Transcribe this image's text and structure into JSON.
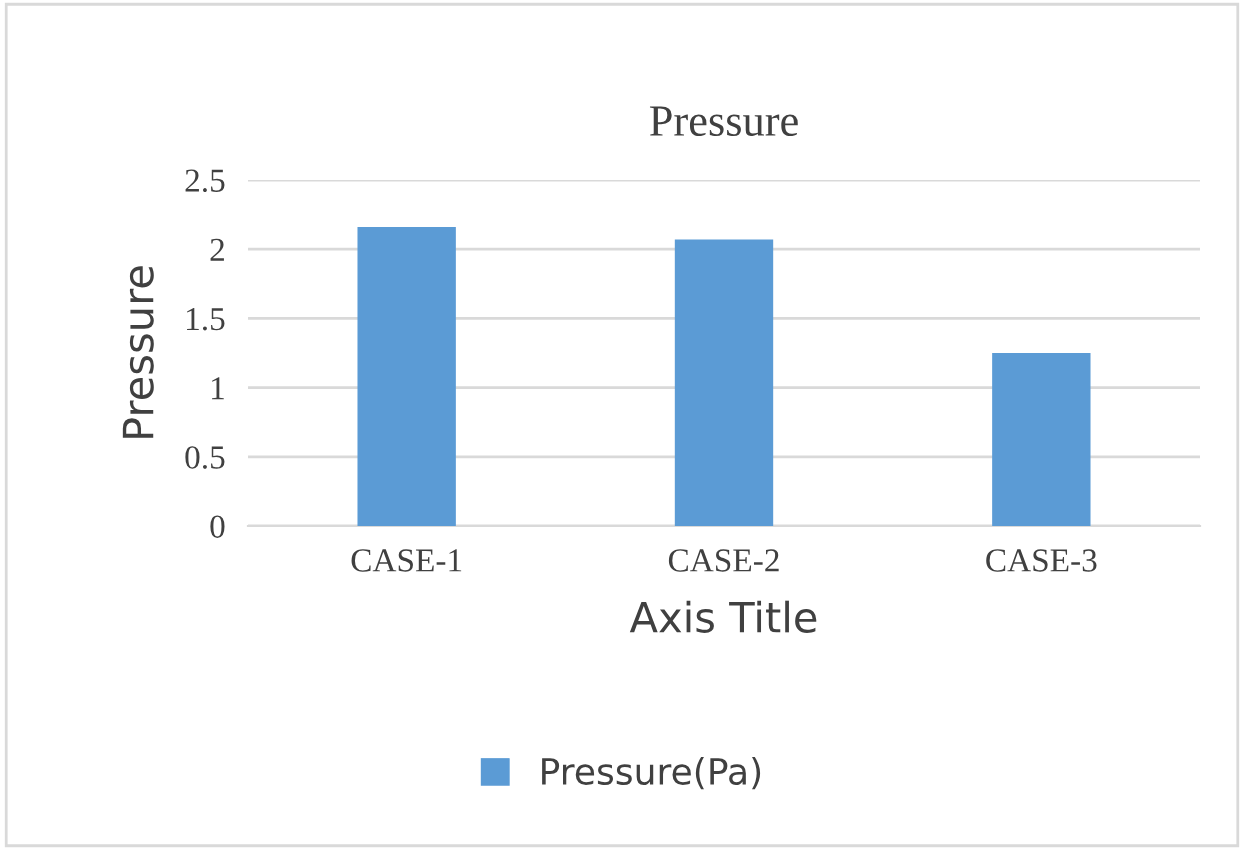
{
  "chart_data": {
    "type": "bar",
    "title": "Pressure",
    "xlabel": "Axis Title",
    "ylabel": "Pressure",
    "categories": [
      "CASE-1",
      "CASE-2",
      "CASE-3"
    ],
    "series": [
      {
        "name": "Pressure(Pa)",
        "color": "#5b9bd5",
        "values": [
          2.16,
          2.07,
          1.25
        ]
      }
    ],
    "ylim": [
      0,
      2.5
    ],
    "yticks": [
      0,
      0.5,
      1,
      1.5,
      2,
      2.5
    ],
    "grid": "y",
    "legend": "bottom"
  }
}
